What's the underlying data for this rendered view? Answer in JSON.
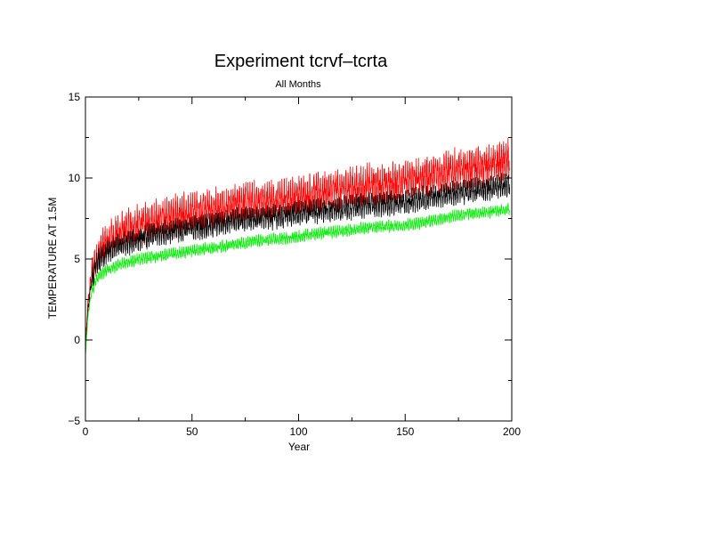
{
  "chart_data": {
    "type": "line",
    "title": "Experiment tcrvf–tcrta",
    "subtitle": "All Months",
    "xlabel": "Year",
    "ylabel": "TEMPERATURE AT 1.5M",
    "xlim": [
      0,
      200
    ],
    "ylim": [
      -5,
      15
    ],
    "x_ticks": [
      0,
      50,
      100,
      150,
      200
    ],
    "y_ticks": [
      -5,
      0,
      5,
      10,
      15
    ],
    "x_tick_labels": [
      "0",
      "50",
      "100",
      "150",
      "200"
    ],
    "y_tick_labels": [
      "−5",
      "0",
      "5",
      "10",
      "15"
    ],
    "grid": false,
    "series_sampling": "annual approximate values; plotted at monthly resolution with seasonal spread",
    "x": [
      0,
      1,
      2,
      3,
      5,
      7,
      10,
      15,
      20,
      25,
      30,
      40,
      50,
      60,
      70,
      80,
      90,
      100,
      110,
      120,
      130,
      140,
      150,
      160,
      170,
      180,
      190,
      199
    ],
    "series": [
      {
        "color": "#ff0000",
        "values": [
          -0.5,
          2.0,
          3.2,
          4.0,
          5.0,
          5.5,
          6.0,
          6.5,
          6.8,
          7.0,
          7.3,
          7.6,
          7.8,
          8.1,
          8.4,
          8.5,
          8.6,
          8.9,
          9.1,
          9.3,
          9.5,
          9.6,
          9.8,
          10.1,
          10.4,
          10.6,
          10.8,
          11.1
        ],
        "amplitude": 1.2
      },
      {
        "color": "#000000",
        "values": [
          -0.8,
          1.5,
          2.8,
          3.6,
          4.6,
          5.0,
          5.4,
          5.8,
          6.0,
          6.2,
          6.4,
          6.7,
          6.9,
          7.1,
          7.4,
          7.5,
          7.6,
          7.8,
          8.0,
          8.1,
          8.3,
          8.4,
          8.5,
          8.8,
          9.0,
          9.2,
          9.4,
          9.6
        ],
        "amplitude": 0.7
      },
      {
        "color": "#00ee00",
        "values": [
          -1.0,
          1.2,
          2.3,
          3.0,
          3.7,
          4.0,
          4.3,
          4.6,
          4.8,
          5.0,
          5.1,
          5.3,
          5.5,
          5.7,
          5.9,
          6.1,
          6.2,
          6.4,
          6.6,
          6.7,
          6.9,
          7.0,
          7.1,
          7.3,
          7.6,
          7.8,
          7.9,
          8.1
        ],
        "amplitude": 0.35
      }
    ]
  }
}
